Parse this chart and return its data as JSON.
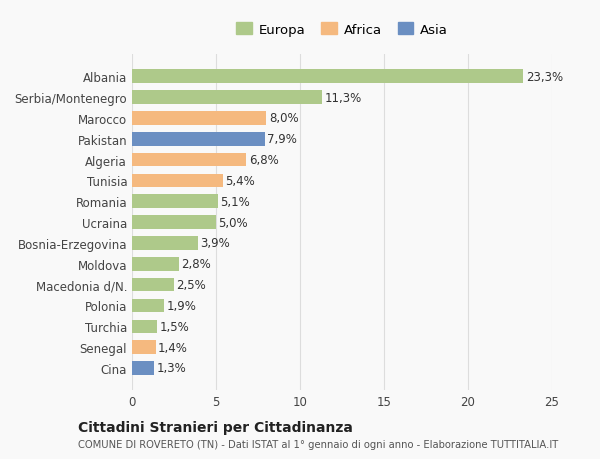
{
  "categories": [
    "Albania",
    "Serbia/Montenegro",
    "Marocco",
    "Pakistan",
    "Algeria",
    "Tunisia",
    "Romania",
    "Ucraina",
    "Bosnia-Erzegovina",
    "Moldova",
    "Macedonia d/N.",
    "Polonia",
    "Turchia",
    "Senegal",
    "Cina"
  ],
  "values": [
    23.3,
    11.3,
    8.0,
    7.9,
    6.8,
    5.4,
    5.1,
    5.0,
    3.9,
    2.8,
    2.5,
    1.9,
    1.5,
    1.4,
    1.3
  ],
  "continents": [
    "Europa",
    "Europa",
    "Africa",
    "Asia",
    "Africa",
    "Africa",
    "Europa",
    "Europa",
    "Europa",
    "Europa",
    "Europa",
    "Europa",
    "Europa",
    "Africa",
    "Asia"
  ],
  "colors": {
    "Europa": "#aec98a",
    "Africa": "#f5b97f",
    "Asia": "#6b8fc2"
  },
  "legend_labels": [
    "Europa",
    "Africa",
    "Asia"
  ],
  "title": "Cittadini Stranieri per Cittadinanza",
  "subtitle": "COMUNE DI ROVERETO (TN) - Dati ISTAT al 1° gennaio di ogni anno - Elaborazione TUTTITALIA.IT",
  "xlim": [
    0,
    25
  ],
  "xticks": [
    0,
    5,
    10,
    15,
    20,
    25
  ],
  "background_color": "#f9f9f9",
  "grid_color": "#dddddd"
}
